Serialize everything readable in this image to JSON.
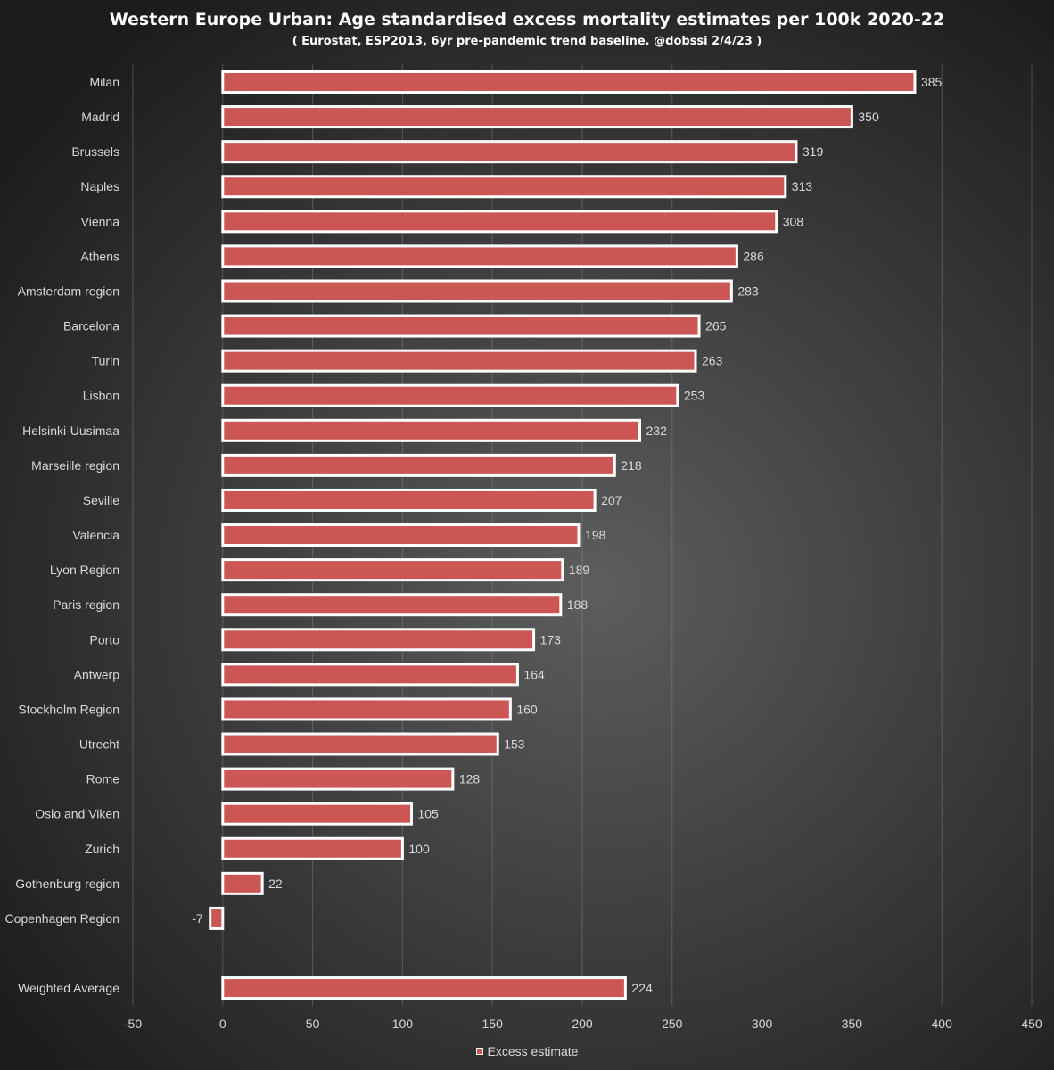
{
  "chart_data": {
    "type": "bar",
    "orientation": "horizontal",
    "title": "Western Europe Urban: Age standardised excess mortality estimates per 100k 2020-22",
    "subtitle": "( Eurostat, ESP2013, 6yr pre-pandemic trend baseline. @dobssi 2/4/23 )",
    "categories": [
      "Milan",
      "Madrid",
      "Brussels",
      "Naples",
      "Vienna",
      "Athens",
      "Amsterdam region",
      "Barcelona",
      "Turin",
      "Lisbon",
      "Helsinki-Uusimaa",
      "Marseille region",
      "Seville",
      "Valencia",
      "Lyon Region",
      "Paris region",
      "Porto",
      "Antwerp",
      "Stockholm Region",
      "Utrecht",
      "Rome",
      "Oslo and Viken",
      "Zurich",
      "Gothenburg region",
      "Copenhagen Region",
      "",
      "Weighted Average"
    ],
    "series": [
      {
        "name": "Excess estimate",
        "values": [
          385,
          350,
          319,
          313,
          308,
          286,
          283,
          265,
          263,
          253,
          232,
          218,
          207,
          198,
          189,
          188,
          173,
          164,
          160,
          153,
          128,
          105,
          100,
          22,
          -7,
          null,
          224
        ]
      }
    ],
    "data_labels": true,
    "xlim": [
      -50,
      450
    ],
    "xticks": [
      -50,
      0,
      50,
      100,
      150,
      200,
      250,
      300,
      350,
      400,
      450
    ],
    "grid": true,
    "legend": "bottom-center",
    "colors": {
      "background_center": "#5d5d5d",
      "background_edge": "#1b1b1b",
      "bar": "#cb5654",
      "bar_border": "#ffffff",
      "text": "#d9d9d9",
      "title": "#ffffff",
      "grid": "#8a8a8a"
    }
  }
}
